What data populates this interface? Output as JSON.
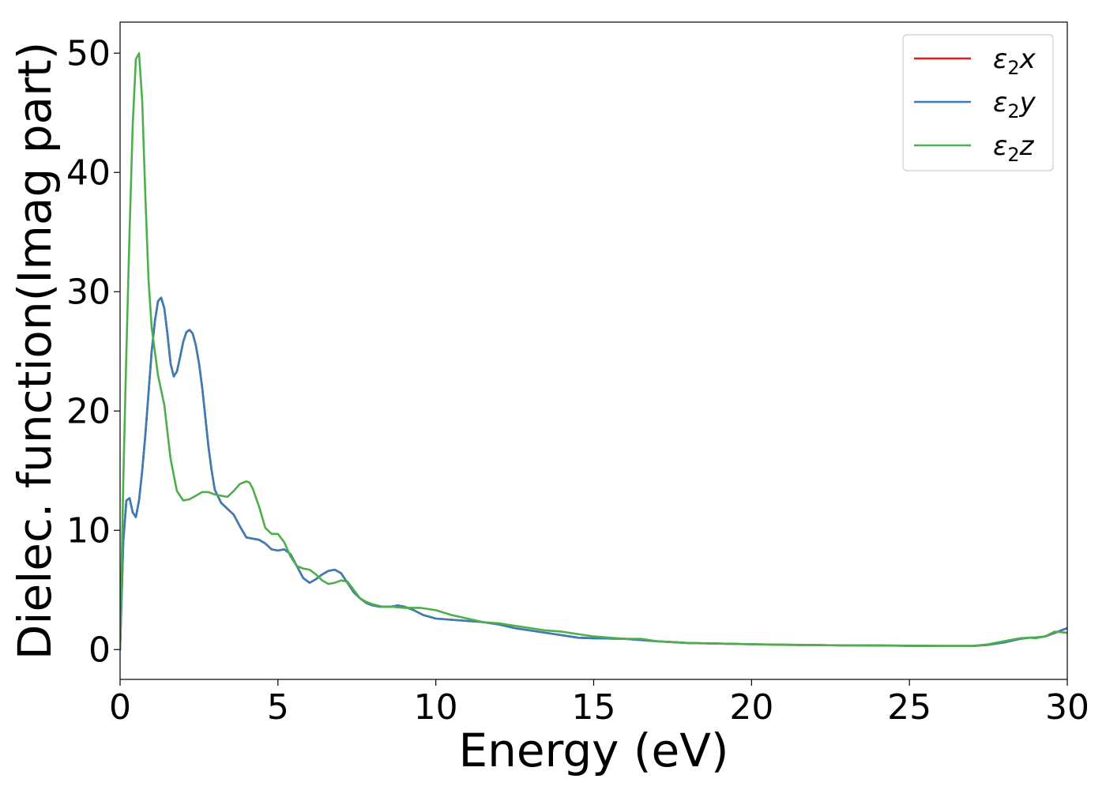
{
  "chart_data": {
    "type": "line",
    "xlabel": "Energy (eV)",
    "ylabel": "Dielec. function(Imag part)",
    "xlim": [
      0,
      30
    ],
    "ylim": [
      -2.5,
      52.6
    ],
    "xticks": [
      0,
      5,
      10,
      15,
      20,
      25,
      30
    ],
    "yticks": [
      0,
      10,
      20,
      30,
      40,
      50
    ],
    "grid": false,
    "legend_position": "top-right",
    "legend_labels": [
      {
        "base": "ε",
        "sub": "2",
        "axis": "x"
      },
      {
        "base": "ε",
        "sub": "2",
        "axis": "y"
      },
      {
        "base": "ε",
        "sub": "2",
        "axis": "z"
      }
    ],
    "series": [
      {
        "name": "ε2x",
        "color": "#e41a1c",
        "x": [
          0,
          0.1,
          0.2,
          0.3,
          0.4,
          0.5,
          0.6,
          0.7,
          0.8,
          0.9,
          1.0,
          1.1,
          1.2,
          1.3,
          1.4,
          1.5,
          1.6,
          1.7,
          1.8,
          1.9,
          2.0,
          2.1,
          2.2,
          2.3,
          2.4,
          2.5,
          2.6,
          2.7,
          2.8,
          2.9,
          3.0,
          3.2,
          3.4,
          3.6,
          3.8,
          4.0,
          4.2,
          4.4,
          4.6,
          4.8,
          5.0,
          5.2,
          5.4,
          5.6,
          5.8,
          6.0,
          6.2,
          6.4,
          6.6,
          6.8,
          7.0,
          7.2,
          7.4,
          7.6,
          7.8,
          8.0,
          8.2,
          8.4,
          8.6,
          8.8,
          9.0,
          9.3,
          9.6,
          10.0,
          10.5,
          11.0,
          11.5,
          12.0,
          12.5,
          13.0,
          13.5,
          14.0,
          14.5,
          15.0,
          16.0,
          17.0,
          18.0,
          19.0,
          20.0,
          21.0,
          22.0,
          23.0,
          24.0,
          25.0,
          26.0,
          27.0,
          27.5,
          28.0,
          28.5,
          28.8,
          29.0,
          29.3,
          29.6,
          30.0
        ],
        "values": [
          0,
          9.0,
          12.5,
          12.7,
          11.5,
          11.1,
          12.5,
          15.0,
          18.0,
          21.5,
          25.0,
          27.5,
          29.2,
          29.5,
          28.6,
          26.5,
          24.0,
          22.9,
          23.3,
          24.5,
          25.8,
          26.6,
          26.8,
          26.5,
          25.5,
          24.0,
          22.0,
          19.5,
          17.0,
          15.0,
          13.4,
          12.3,
          11.8,
          11.3,
          10.3,
          9.4,
          9.3,
          9.2,
          8.9,
          8.4,
          8.3,
          8.4,
          8.0,
          7.0,
          6.0,
          5.6,
          5.9,
          6.3,
          6.6,
          6.7,
          6.4,
          5.6,
          4.8,
          4.3,
          3.9,
          3.7,
          3.6,
          3.6,
          3.6,
          3.7,
          3.6,
          3.3,
          2.9,
          2.6,
          2.5,
          2.4,
          2.3,
          2.1,
          1.8,
          1.6,
          1.4,
          1.2,
          1.0,
          0.95,
          0.9,
          0.7,
          0.55,
          0.5,
          0.45,
          0.4,
          0.38,
          0.35,
          0.35,
          0.32,
          0.3,
          0.3,
          0.4,
          0.6,
          0.9,
          1.0,
          1.0,
          1.1,
          1.4,
          1.8
        ]
      },
      {
        "name": "ε2y",
        "color": "#377eb8",
        "x": [
          0,
          0.1,
          0.2,
          0.3,
          0.4,
          0.5,
          0.6,
          0.7,
          0.8,
          0.9,
          1.0,
          1.1,
          1.2,
          1.3,
          1.4,
          1.5,
          1.6,
          1.7,
          1.8,
          1.9,
          2.0,
          2.1,
          2.2,
          2.3,
          2.4,
          2.5,
          2.6,
          2.7,
          2.8,
          2.9,
          3.0,
          3.2,
          3.4,
          3.6,
          3.8,
          4.0,
          4.2,
          4.4,
          4.6,
          4.8,
          5.0,
          5.2,
          5.4,
          5.6,
          5.8,
          6.0,
          6.2,
          6.4,
          6.6,
          6.8,
          7.0,
          7.2,
          7.4,
          7.6,
          7.8,
          8.0,
          8.2,
          8.4,
          8.6,
          8.8,
          9.0,
          9.3,
          9.6,
          10.0,
          10.5,
          11.0,
          11.5,
          12.0,
          12.5,
          13.0,
          13.5,
          14.0,
          14.5,
          15.0,
          16.0,
          17.0,
          18.0,
          19.0,
          20.0,
          21.0,
          22.0,
          23.0,
          24.0,
          25.0,
          26.0,
          27.0,
          27.5,
          28.0,
          28.5,
          28.8,
          29.0,
          29.3,
          29.6,
          30.0
        ],
        "values": [
          0,
          9.0,
          12.5,
          12.7,
          11.5,
          11.1,
          12.5,
          15.0,
          18.0,
          21.5,
          25.0,
          27.5,
          29.2,
          29.5,
          28.6,
          26.5,
          24.0,
          22.9,
          23.3,
          24.5,
          25.8,
          26.6,
          26.8,
          26.5,
          25.5,
          24.0,
          22.0,
          19.5,
          17.0,
          15.0,
          13.4,
          12.3,
          11.8,
          11.3,
          10.3,
          9.4,
          9.3,
          9.2,
          8.9,
          8.4,
          8.3,
          8.4,
          8.0,
          7.0,
          6.0,
          5.6,
          5.9,
          6.3,
          6.6,
          6.7,
          6.4,
          5.6,
          4.8,
          4.3,
          3.9,
          3.7,
          3.6,
          3.6,
          3.6,
          3.7,
          3.6,
          3.3,
          2.9,
          2.6,
          2.5,
          2.4,
          2.3,
          2.1,
          1.8,
          1.6,
          1.4,
          1.2,
          1.0,
          0.95,
          0.9,
          0.7,
          0.55,
          0.5,
          0.45,
          0.4,
          0.38,
          0.35,
          0.35,
          0.32,
          0.3,
          0.3,
          0.4,
          0.6,
          0.9,
          1.0,
          1.0,
          1.1,
          1.4,
          1.8
        ]
      },
      {
        "name": "ε2z",
        "color": "#4daf4a",
        "x": [
          0,
          0.1,
          0.2,
          0.3,
          0.4,
          0.5,
          0.6,
          0.7,
          0.8,
          0.9,
          1.0,
          1.2,
          1.4,
          1.6,
          1.8,
          2.0,
          2.2,
          2.4,
          2.6,
          2.8,
          3.0,
          3.2,
          3.4,
          3.6,
          3.8,
          4.0,
          4.1,
          4.2,
          4.4,
          4.6,
          4.8,
          5.0,
          5.2,
          5.4,
          5.6,
          5.8,
          6.0,
          6.2,
          6.4,
          6.6,
          6.8,
          7.0,
          7.2,
          7.4,
          7.6,
          7.8,
          8.0,
          8.3,
          8.6,
          9.0,
          9.5,
          10.0,
          10.5,
          11.0,
          11.5,
          12.0,
          12.5,
          13.0,
          13.5,
          14.0,
          14.5,
          15.0,
          16.0,
          16.5,
          17.0,
          18.0,
          19.0,
          20.0,
          21.0,
          22.0,
          23.0,
          24.0,
          25.0,
          26.0,
          27.0,
          27.5,
          28.0,
          28.5,
          28.8,
          29.0,
          29.3,
          29.6,
          30.0
        ],
        "values": [
          0,
          14.0,
          25.0,
          35.0,
          44.0,
          49.5,
          50.0,
          46.0,
          38.0,
          31.0,
          27.0,
          23.0,
          20.5,
          16.0,
          13.3,
          12.5,
          12.6,
          12.9,
          13.2,
          13.2,
          13.0,
          12.9,
          12.8,
          13.3,
          13.9,
          14.1,
          14.0,
          13.5,
          12.0,
          10.2,
          9.7,
          9.7,
          9.0,
          7.8,
          7.0,
          6.8,
          6.7,
          6.3,
          5.8,
          5.5,
          5.6,
          5.8,
          5.7,
          5.0,
          4.3,
          4.0,
          3.8,
          3.6,
          3.6,
          3.5,
          3.5,
          3.3,
          2.9,
          2.6,
          2.3,
          2.2,
          2.0,
          1.8,
          1.6,
          1.5,
          1.3,
          1.1,
          0.9,
          0.9,
          0.7,
          0.55,
          0.5,
          0.45,
          0.42,
          0.38,
          0.35,
          0.33,
          0.32,
          0.3,
          0.3,
          0.45,
          0.7,
          0.95,
          1.0,
          0.95,
          1.1,
          1.5,
          1.4
        ]
      }
    ]
  }
}
